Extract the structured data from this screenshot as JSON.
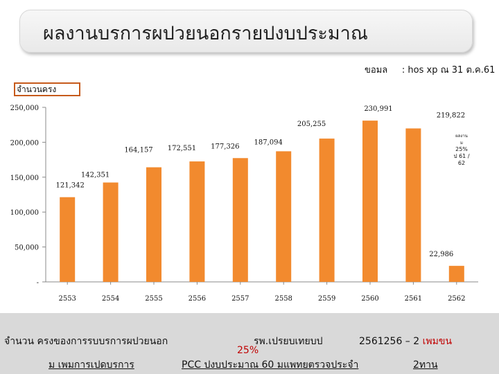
{
  "title": "ผลงานบรการผปวยนอกรายปงบประมาณ",
  "source": {
    "label": "ขอมล",
    "value": ": hos xp ณ 31 ต.ค.61"
  },
  "y_axis_box_label": "จำนวนครง",
  "colors": {
    "bar": "#f28a2e",
    "axis": "#888888",
    "footer_bg": "#d9d9d9",
    "accent_red": "#c00000",
    "box_border": "#c65a1b"
  },
  "chart_data": {
    "type": "bar",
    "categories": [
      "2553",
      "2554",
      "2555",
      "2556",
      "2557",
      "2558",
      "2559",
      "2560",
      "2561",
      "2562"
    ],
    "values": [
      121342,
      142351,
      164157,
      172551,
      177326,
      187094,
      205255,
      230991,
      219822,
      22986
    ],
    "data_labels": [
      "121,342",
      "142,351",
      "164,157",
      "172,551",
      "177,326",
      "187,094",
      "205,255",
      "230,991",
      "219,822",
      "22,986"
    ],
    "yticks": [
      0,
      50000,
      100000,
      150000,
      200000,
      250000
    ],
    "ytick_labels": [
      "-",
      "50,000",
      "100,000",
      "150,000",
      "200,000",
      "250,000"
    ],
    "ylim": [
      0,
      250000
    ],
    "ylabel": "จำนวนครง",
    "grid": false,
    "annotation": "ผลงาน ม 25% ป 61 / 62"
  },
  "footer": {
    "line1_a": "จำนวน ครงของการรบบรการผปวยนอก",
    "line1_b": "รพ.เปรยบเทยบป",
    "line1_c": "2561256 – 2",
    "line1_red": "เพมขน",
    "line2": "25%",
    "line3_a": "ม เพมการเปดบรการ",
    "line3_b": "PCC ปงบประมาณ 60 มแพทยตรวจประจำ",
    "line3_c": "2ทาน"
  }
}
